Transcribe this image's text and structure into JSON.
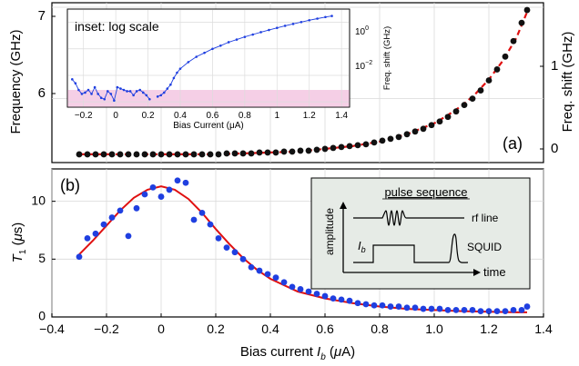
{
  "chart_data": [
    {
      "panel_label": "(a)",
      "type": "scatter",
      "title": "",
      "ylabel_left": "Frequency (GHz)",
      "ylabel_right": "Freq. shift (GHz)",
      "xlim": [
        -0.4,
        1.4
      ],
      "ylim_left": [
        5.3,
        7.05
      ],
      "ylim_right": [
        -0.1,
        1.65
      ],
      "left_yticks": [
        "7",
        "6"
      ],
      "right_yticks": [
        "0",
        "1"
      ],
      "grid": true,
      "series": [
        {
          "kind": "points",
          "color": "#111111",
          "x": [
            -0.3,
            -0.27,
            -0.24,
            -0.21,
            -0.18,
            -0.15,
            -0.12,
            -0.09,
            -0.06,
            -0.03,
            0.0,
            0.03,
            0.06,
            0.09,
            0.12,
            0.15,
            0.18,
            0.21,
            0.24,
            0.27,
            0.3,
            0.33,
            0.36,
            0.39,
            0.42,
            0.45,
            0.48,
            0.51,
            0.54,
            0.57,
            0.6,
            0.63,
            0.66,
            0.69,
            0.72,
            0.75,
            0.78,
            0.81,
            0.84,
            0.87,
            0.9,
            0.93,
            0.96,
            0.99,
            1.02,
            1.05,
            1.08,
            1.11,
            1.14,
            1.17,
            1.2,
            1.23,
            1.26,
            1.29,
            1.32,
            1.34
          ],
          "y": [
            5.39,
            5.39,
            5.39,
            5.39,
            5.39,
            5.39,
            5.39,
            5.39,
            5.39,
            5.39,
            5.39,
            5.39,
            5.39,
            5.39,
            5.39,
            5.39,
            5.39,
            5.39,
            5.4,
            5.4,
            5.4,
            5.4,
            5.41,
            5.41,
            5.41,
            5.42,
            5.42,
            5.43,
            5.43,
            5.44,
            5.45,
            5.46,
            5.47,
            5.48,
            5.49,
            5.5,
            5.52,
            5.54,
            5.56,
            5.58,
            5.61,
            5.64,
            5.67,
            5.71,
            5.75,
            5.8,
            5.86,
            5.93,
            6.0,
            6.09,
            6.2,
            6.32,
            6.46,
            6.63,
            6.83,
            6.97
          ]
        },
        {
          "kind": "dashed-fit",
          "color": "#e01010",
          "x": [
            -0.3,
            -0.2,
            -0.1,
            0.0,
            0.1,
            0.2,
            0.3,
            0.4,
            0.5,
            0.6,
            0.7,
            0.8,
            0.9,
            1.0,
            1.05,
            1.1,
            1.15,
            1.2,
            1.25,
            1.3,
            1.34
          ],
          "y": [
            5.39,
            5.39,
            5.39,
            5.39,
            5.39,
            5.39,
            5.4,
            5.41,
            5.42,
            5.45,
            5.48,
            5.53,
            5.61,
            5.73,
            5.82,
            5.92,
            6.05,
            6.21,
            6.41,
            6.66,
            6.95
          ]
        }
      ]
    },
    {
      "panel_label": "(b)",
      "type": "scatter",
      "title": "",
      "xlabel": "Bias current I_b (μA)",
      "ylabel": "T₁ (μs)",
      "xlim": [
        -0.4,
        1.4
      ],
      "ylim": [
        0,
        12.8
      ],
      "xticks": [
        "−0.4",
        "−0.2",
        "0",
        "0.2",
        "0.4",
        "0.6",
        "0.8",
        "1.0",
        "1.2",
        "1.4"
      ],
      "yticks": [
        "0",
        "5",
        "10"
      ],
      "grid": true,
      "series": [
        {
          "kind": "points",
          "color": "#1f3fe0",
          "x": [
            -0.3,
            -0.27,
            -0.24,
            -0.21,
            -0.18,
            -0.15,
            -0.12,
            -0.09,
            -0.06,
            -0.03,
            0.0,
            0.03,
            0.06,
            0.09,
            0.12,
            0.15,
            0.18,
            0.21,
            0.24,
            0.27,
            0.3,
            0.33,
            0.36,
            0.39,
            0.42,
            0.45,
            0.48,
            0.51,
            0.54,
            0.57,
            0.6,
            0.63,
            0.66,
            0.69,
            0.72,
            0.75,
            0.78,
            0.81,
            0.84,
            0.87,
            0.9,
            0.93,
            0.96,
            0.99,
            1.02,
            1.05,
            1.08,
            1.11,
            1.14,
            1.17,
            1.2,
            1.23,
            1.26,
            1.29,
            1.32,
            1.34
          ],
          "y": [
            5.2,
            6.8,
            7.2,
            8.0,
            8.6,
            9.2,
            7.0,
            9.4,
            10.6,
            11.2,
            10.4,
            11.0,
            11.8,
            11.6,
            8.4,
            9.0,
            8.0,
            6.8,
            6.0,
            5.6,
            5.0,
            4.3,
            4.0,
            3.7,
            3.4,
            3.0,
            2.6,
            2.4,
            2.2,
            2.0,
            1.8,
            1.6,
            1.5,
            1.4,
            1.2,
            1.1,
            1.0,
            1.0,
            0.9,
            0.9,
            0.8,
            0.8,
            0.7,
            0.7,
            0.7,
            0.6,
            0.6,
            0.6,
            0.6,
            0.5,
            0.5,
            0.5,
            0.5,
            0.6,
            0.6,
            0.9
          ]
        },
        {
          "kind": "fit",
          "color": "#e01010",
          "x": [
            -0.3,
            -0.25,
            -0.2,
            -0.15,
            -0.1,
            -0.05,
            0.0,
            0.05,
            0.1,
            0.15,
            0.2,
            0.25,
            0.3,
            0.35,
            0.4,
            0.5,
            0.6,
            0.7,
            0.8,
            0.9,
            1.0,
            1.1,
            1.2,
            1.3,
            1.34
          ],
          "y": [
            5.4,
            6.6,
            7.9,
            9.2,
            10.3,
            11.0,
            11.3,
            11.0,
            10.2,
            9.0,
            7.6,
            6.3,
            5.1,
            4.1,
            3.3,
            2.2,
            1.6,
            1.2,
            0.9,
            0.7,
            0.6,
            0.5,
            0.45,
            0.4,
            0.4
          ]
        }
      ]
    },
    {
      "panel_label": "inset",
      "type": "line",
      "title": "inset: log scale",
      "xlabel": "Bias Current (μA)",
      "ylabel": "Freq. shift (GHz)",
      "yscale": "log",
      "xlim": [
        -0.3,
        1.45
      ],
      "ylim_log10": [
        -3.2,
        0.5
      ],
      "xticks": [
        "−0.2",
        "0",
        "0.2",
        "0.4",
        "0.6",
        "0.8",
        "1",
        "1.2",
        "1.4"
      ],
      "yticks": [
        {
          "base": "10",
          "exp": "0",
          "value": 1
        },
        {
          "base": "10",
          "exp": "−2",
          "value": 0.01
        }
      ],
      "shaded_band_log10": [
        -3.2,
        -2.55
      ],
      "shade_color": "#f5cfe6",
      "series": [
        {
          "color": "#1f3fe0",
          "x": [
            -0.27,
            -0.25,
            -0.23,
            -0.21,
            -0.19,
            -0.17,
            -0.15,
            -0.13,
            -0.11,
            -0.09,
            -0.07,
            -0.05,
            -0.03,
            -0.01,
            0.01,
            0.03,
            0.05,
            0.07,
            0.09,
            0.11,
            0.13,
            0.15,
            0.17,
            0.19,
            0.21
          ],
          "y_log10": [
            -2.15,
            -2.3,
            -2.55,
            -2.7,
            -2.65,
            -2.55,
            -2.7,
            -2.45,
            -2.7,
            -2.85,
            -2.9,
            -2.6,
            -2.7,
            -2.95,
            -2.45,
            -2.5,
            -2.55,
            -2.6,
            -2.6,
            -2.75,
            -2.6,
            -2.55,
            -2.65,
            -2.75,
            -2.9
          ]
        },
        {
          "color": "#1f3fe0",
          "x": [
            0.26,
            0.28,
            0.3,
            0.32,
            0.34,
            0.36,
            0.38,
            0.4,
            0.45,
            0.5,
            0.55,
            0.6,
            0.65,
            0.7,
            0.75,
            0.8,
            0.85,
            0.9,
            0.95,
            1.0,
            1.05,
            1.1,
            1.15,
            1.2,
            1.25,
            1.3,
            1.34
          ],
          "y_log10": [
            -2.8,
            -2.75,
            -2.65,
            -2.5,
            -2.35,
            -2.1,
            -1.9,
            -1.75,
            -1.5,
            -1.3,
            -1.15,
            -1.0,
            -0.88,
            -0.75,
            -0.65,
            -0.55,
            -0.46,
            -0.37,
            -0.29,
            -0.21,
            -0.13,
            -0.06,
            0.01,
            0.08,
            0.14,
            0.2,
            0.24
          ]
        }
      ]
    },
    {
      "panel_label": "pulse-sequence-schematic",
      "type": "diagram",
      "title": "pulse sequence",
      "labels": {
        "amplitude": "amplitude",
        "time": "time",
        "rf_line": "rf line",
        "squid": "SQUID",
        "ib_base": "I",
        "ib_sub": "b"
      },
      "background": "#e6ebe6"
    }
  ]
}
